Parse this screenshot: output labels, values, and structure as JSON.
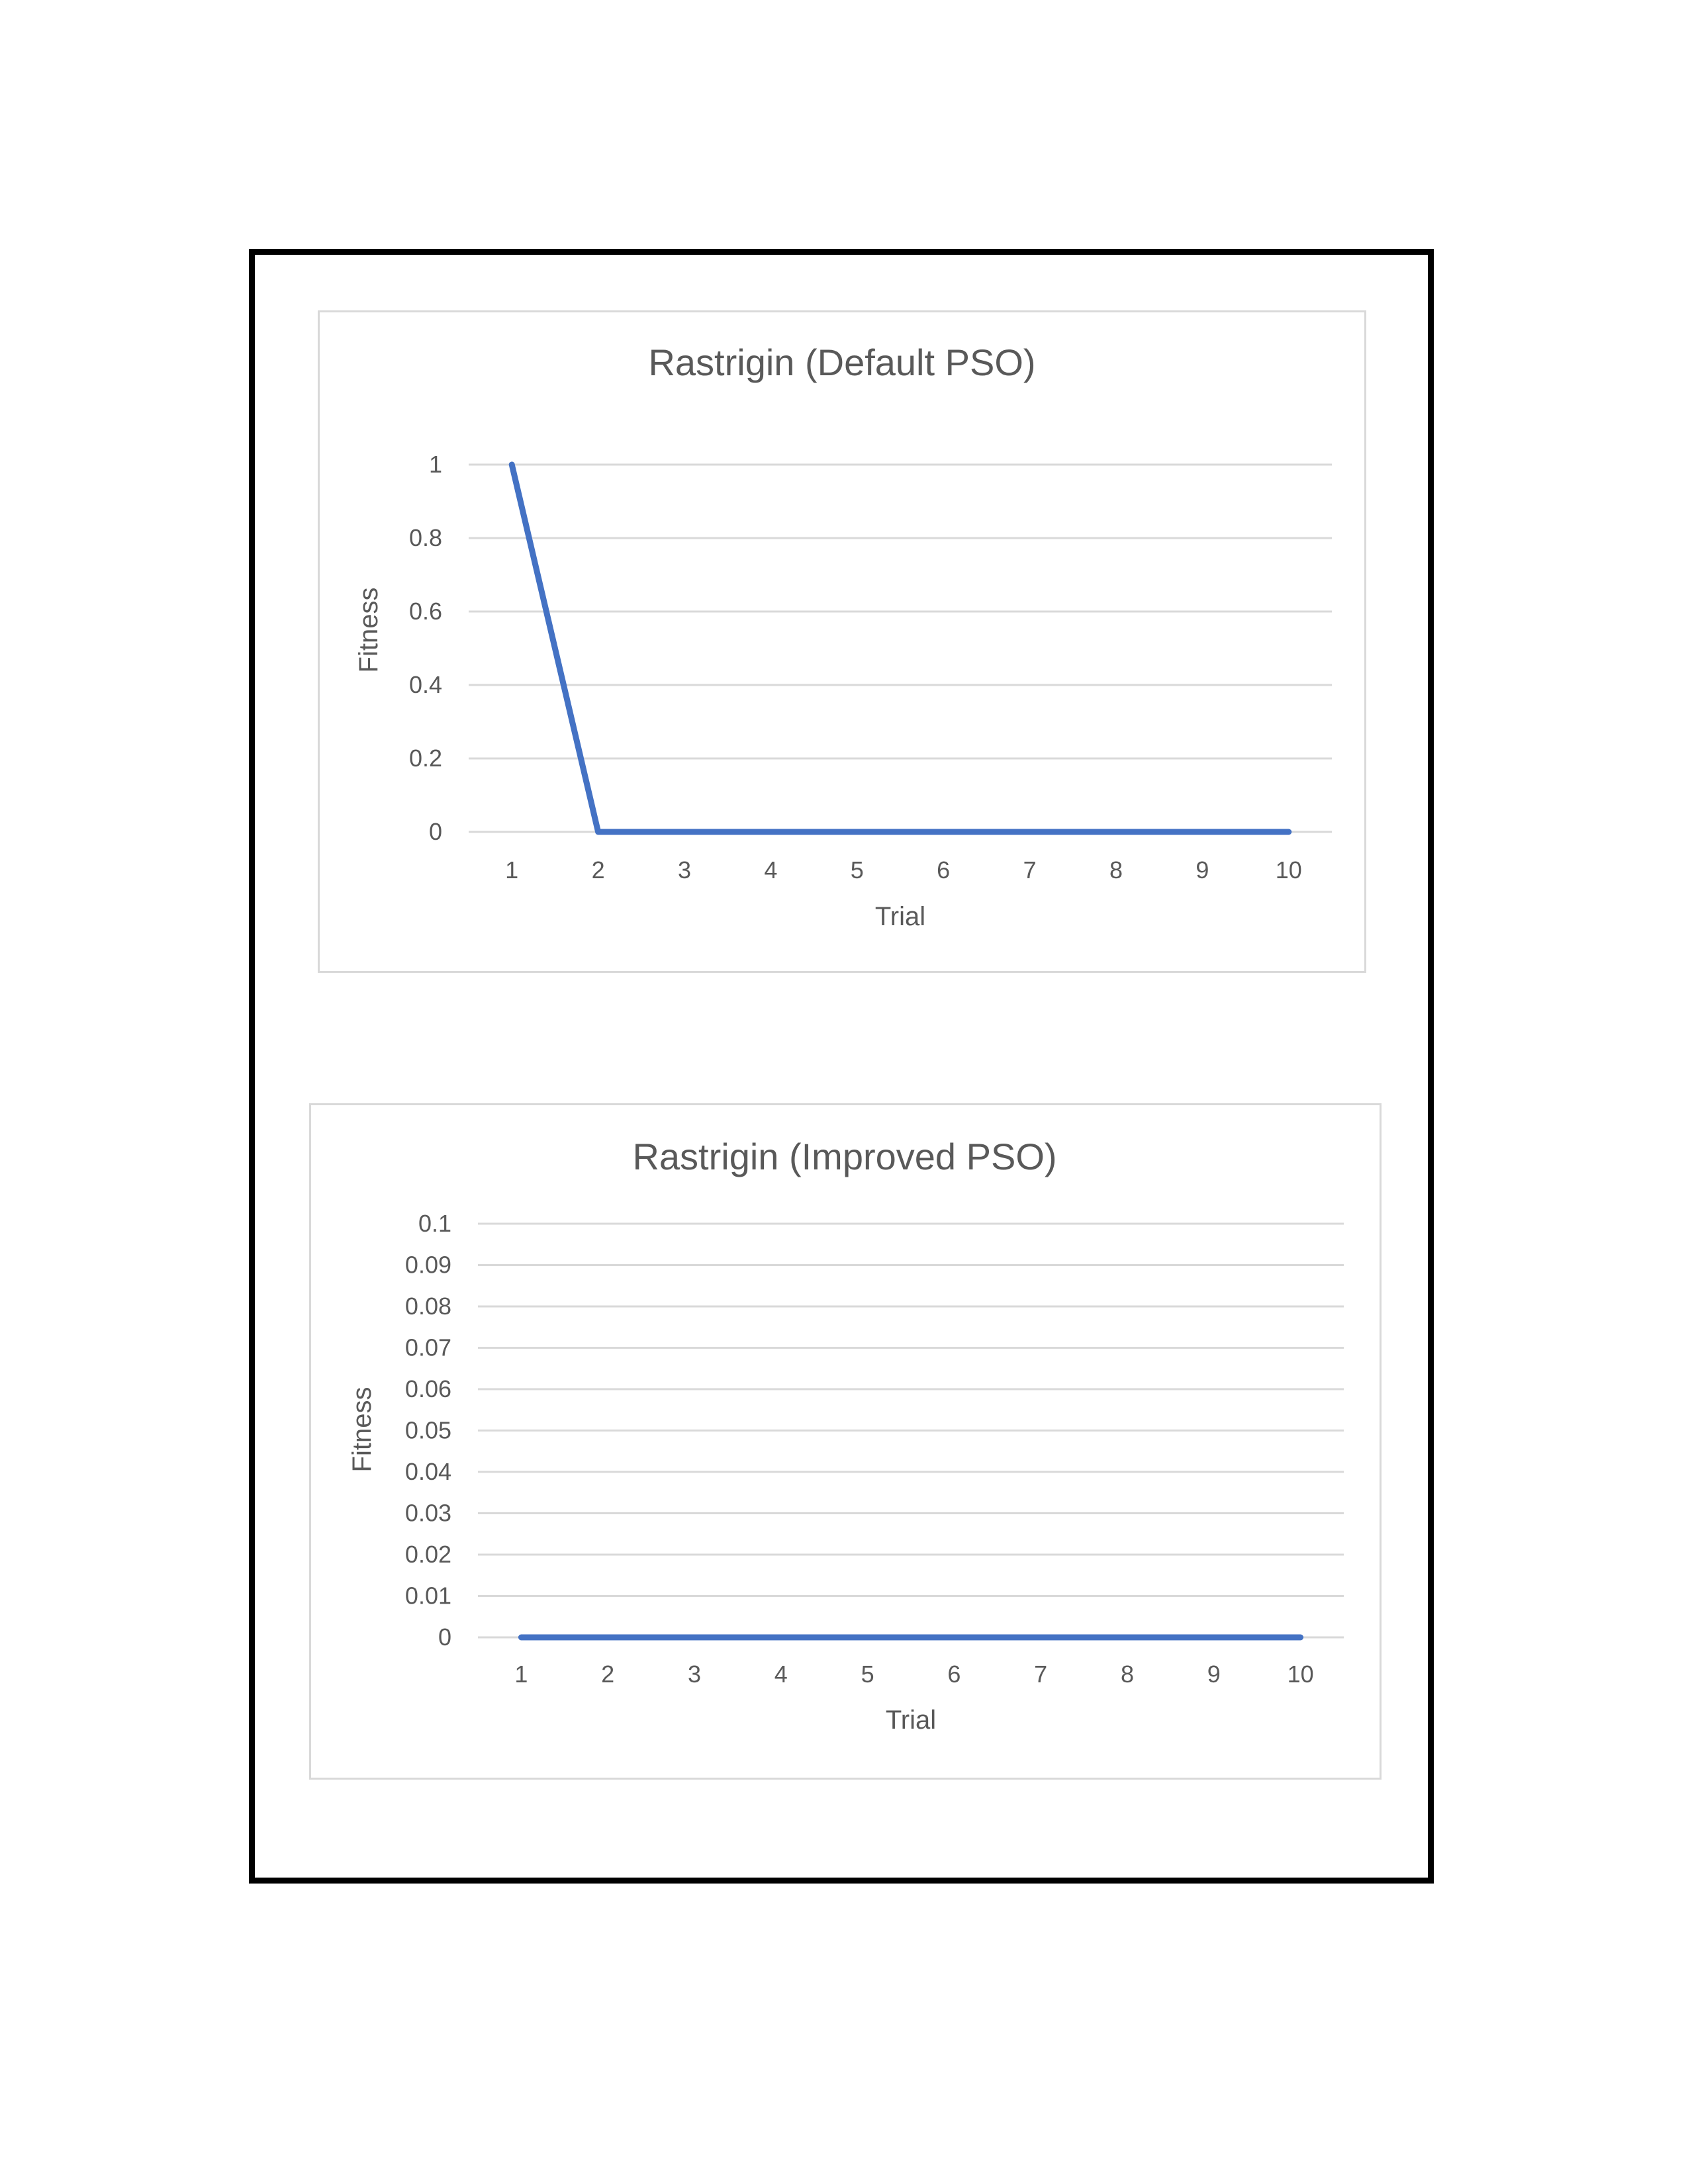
{
  "chart_data": [
    {
      "type": "line",
      "title": "Rastrigin (Default PSO)",
      "xlabel": "Trial",
      "ylabel": "Fitness",
      "categories": [
        "1",
        "2",
        "3",
        "4",
        "5",
        "6",
        "7",
        "8",
        "9",
        "10"
      ],
      "series": [
        {
          "values": [
            1,
            0,
            0,
            0,
            0,
            0,
            0,
            0,
            0,
            0
          ],
          "color": "#4472c4"
        }
      ],
      "ylim": [
        0,
        1
      ],
      "yticks": [
        "0",
        "0.2",
        "0.4",
        "0.6",
        "0.8",
        "1"
      ],
      "grid": true,
      "legend": "none"
    },
    {
      "type": "line",
      "title": "Rastrigin (Improved PSO)",
      "xlabel": "Trial",
      "ylabel": "Fitness",
      "categories": [
        "1",
        "2",
        "3",
        "4",
        "5",
        "6",
        "7",
        "8",
        "9",
        "10"
      ],
      "series": [
        {
          "values": [
            0,
            0,
            0,
            0,
            0,
            0,
            0,
            0,
            0,
            0
          ],
          "color": "#4472c4"
        }
      ],
      "ylim": [
        0,
        0.1
      ],
      "yticks": [
        "0",
        "0.01",
        "0.02",
        "0.03",
        "0.04",
        "0.05",
        "0.06",
        "0.07",
        "0.08",
        "0.09",
        "0.1"
      ],
      "grid": true,
      "legend": "none"
    }
  ]
}
